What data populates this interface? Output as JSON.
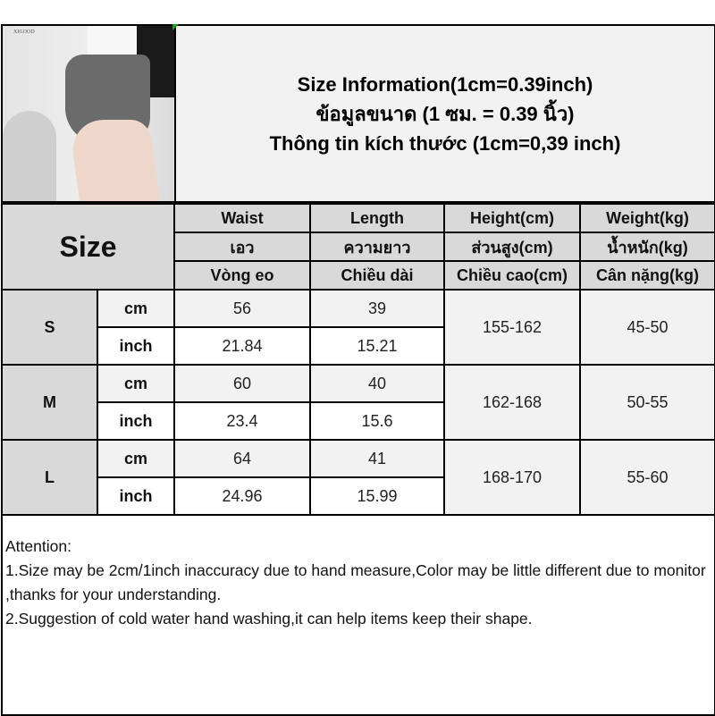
{
  "photo": {
    "watermark": "XIGOOD"
  },
  "title": {
    "line1": "Size Information(1cm=0.39inch)",
    "line2": "ข้อมูลขนาด (1 ซม. = 0.39 นิ้ว)",
    "line3": "Thông tin kích thước (1cm=0,39 inch)"
  },
  "table": {
    "size_label": "Size",
    "columns": [
      [
        "Waist",
        "เอว",
        "Vòng eo"
      ],
      [
        "Length",
        "ความยาว",
        "Chiều dài"
      ],
      [
        "Height(cm)",
        "ส่วนสูง(cm)",
        "Chiều cao(cm)"
      ],
      [
        "Weight(kg)",
        "น้ำหนัก(kg)",
        "Cân nặng(kg)"
      ]
    ],
    "rows": [
      {
        "size": "S",
        "cm_label": "cm",
        "inch_label": "inch",
        "waist_cm": "56",
        "length_cm": "39",
        "waist_in": "21.84",
        "length_in": "15.21",
        "height": "155-162",
        "weight": "45-50"
      },
      {
        "size": "M",
        "cm_label": "cm",
        "inch_label": "inch",
        "waist_cm": "60",
        "length_cm": "40",
        "waist_in": "23.4",
        "length_in": "15.6",
        "height": "162-168",
        "weight": "50-55"
      },
      {
        "size": "L",
        "cm_label": "cm",
        "inch_label": "inch",
        "waist_cm": "64",
        "length_cm": "41",
        "waist_in": "24.96",
        "length_in": "15.99",
        "height": "168-170",
        "weight": "55-60"
      }
    ]
  },
  "attention": {
    "heading": "Attention:",
    "note1": "1.Size may be 2cm/1inch inaccuracy due to hand measure,Color may be little different due to monitor ,thanks for your understanding.",
    "note2": "2.Suggestion of cold water hand washing,it can help items keep their shape."
  }
}
